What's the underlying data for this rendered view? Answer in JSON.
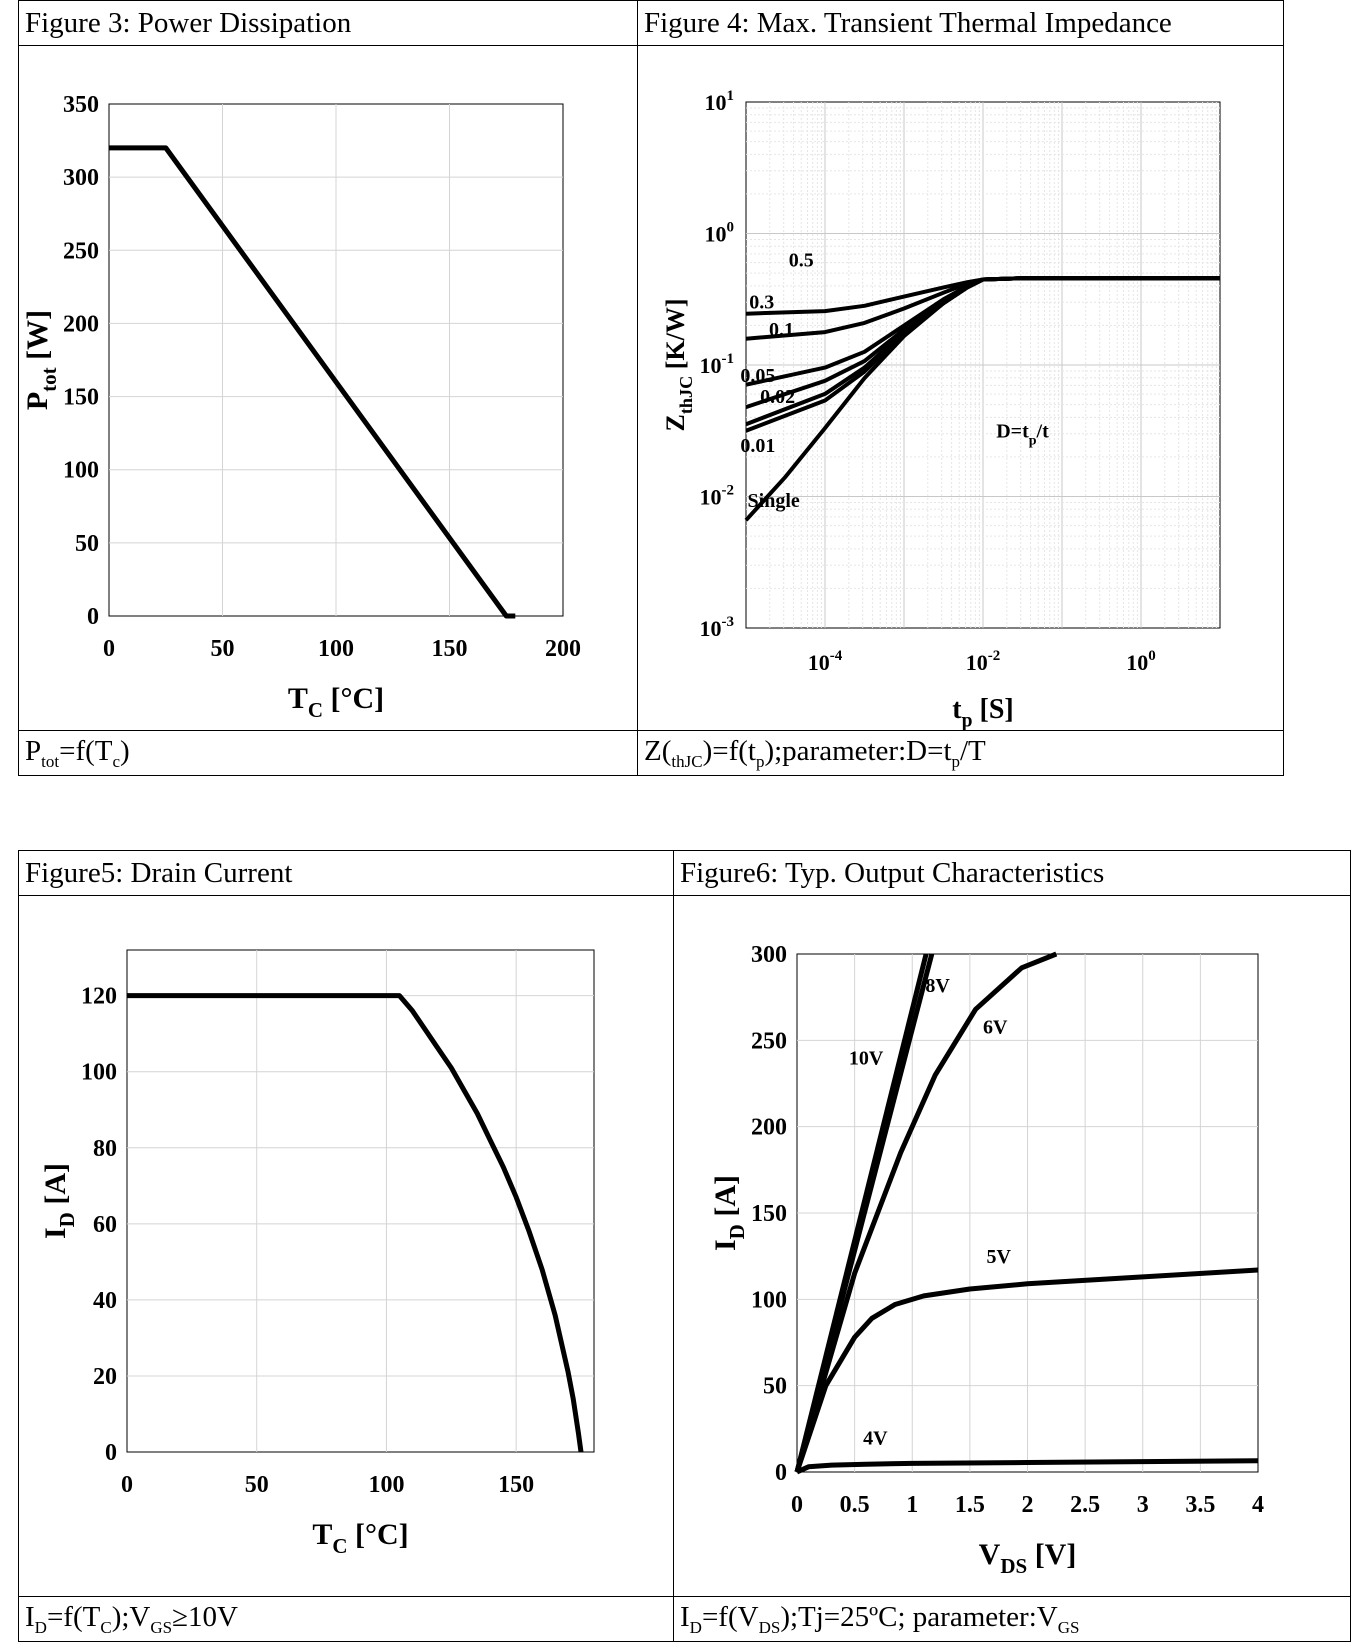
{
  "top_row": {
    "left_title": "Figure 3: Power Dissipation",
    "right_title": "Figure 4: Max. Transient Thermal Impedance",
    "left_caption": {
      "a": "P",
      "a_sub": "tot",
      "b": "=f(T",
      "b_sub": "c",
      "c": ")"
    },
    "right_caption": {
      "a": "Z(",
      "a_sub": "thJC",
      "b": ")=f(t",
      "b_sub": "p",
      "c": ");parameter:D=t",
      "c_sub": "p",
      "d": "/T"
    }
  },
  "bottom_row": {
    "left_title": "Figure5: Drain Current",
    "right_title": "Figure6: Typ. Output Characteristics",
    "left_caption": {
      "a": "I",
      "a_sub": "D",
      "b": "=f(T",
      "b_sub": "C",
      "c": ");V",
      "c_sub": "GS",
      "d": "≥10V"
    },
    "right_caption": {
      "a": "I",
      "a_sub": "D",
      "b": "=f(V",
      "b_sub": "DS",
      "c": ");Tj=25ºC; parameter:V",
      "c_sub": "GS"
    }
  },
  "chart_data": [
    {
      "id": "fig3",
      "type": "line",
      "xlabel": {
        "main": "T",
        "sub": "C",
        "unit": " [°C]"
      },
      "ylabel": {
        "main": "P",
        "sub": "tot",
        "unit": "  [W]"
      },
      "xlim": [
        0,
        200
      ],
      "ylim": [
        0,
        350
      ],
      "xticks": [
        0,
        50,
        100,
        150,
        200
      ],
      "yticks": [
        0,
        50,
        100,
        150,
        200,
        250,
        300,
        350
      ],
      "grid": true,
      "series": [
        {
          "x": [
            0,
            25,
            175,
            179
          ],
          "y": [
            320,
            320,
            0,
            0
          ]
        }
      ]
    },
    {
      "id": "fig4",
      "type": "line",
      "scale": "log-log",
      "xlabel": {
        "main": "t",
        "sub": "p",
        "unit": " [S]"
      },
      "ylabel": {
        "main": "Z",
        "sub": "thJC",
        "unit": " [K/W]"
      },
      "xlim_exp": [
        -5,
        1
      ],
      "ylim_exp": [
        -3,
        1
      ],
      "xticks": [
        {
          "exp": "-4",
          "v": -4
        },
        {
          "exp": "-2",
          "v": -2
        },
        {
          "exp": "0",
          "v": 0
        }
      ],
      "yticks": [
        {
          "exp": "-3",
          "v": -3
        },
        {
          "exp": "-2",
          "v": -2
        },
        {
          "exp": "-1",
          "v": -1
        },
        {
          "exp": "0",
          "v": 0
        },
        {
          "exp": "1",
          "v": 1
        }
      ],
      "grid": true,
      "annotation": {
        "main": "D=t",
        "sub": "p",
        "rest": "/t"
      },
      "series": [
        {
          "name": "0.5",
          "lx": [
            -5,
            -4,
            -3.5,
            -3,
            -2.5,
            -2.2,
            -2,
            -1.5,
            -1,
            0,
            1
          ],
          "ly": [
            -0.61,
            -0.59,
            -0.55,
            -0.48,
            -0.41,
            -0.37,
            -0.35,
            -0.34,
            -0.34,
            -0.34,
            -0.34
          ]
        },
        {
          "name": "0.3",
          "lx": [
            -5,
            -4,
            -3.5,
            -3,
            -2.5,
            -2.2,
            -2,
            -1.5,
            -1,
            0,
            1
          ],
          "ly": [
            -0.8,
            -0.75,
            -0.68,
            -0.57,
            -0.45,
            -0.38,
            -0.35,
            -0.34,
            -0.34,
            -0.34,
            -0.34
          ]
        },
        {
          "name": "0.1",
          "lx": [
            -5,
            -4,
            -3.5,
            -3,
            -2.5,
            -2.2,
            -2,
            -1.5,
            -1,
            0,
            1
          ],
          "ly": [
            -1.15,
            -1.02,
            -0.9,
            -0.7,
            -0.5,
            -0.4,
            -0.35,
            -0.34,
            -0.34,
            -0.34,
            -0.34
          ]
        },
        {
          "name": "0.05",
          "lx": [
            -5,
            -4,
            -3.5,
            -3,
            -2.5,
            -2.2,
            -2,
            -1.5,
            -1,
            0,
            1
          ],
          "ly": [
            -1.32,
            -1.12,
            -0.97,
            -0.73,
            -0.52,
            -0.41,
            -0.35,
            -0.34,
            -0.34,
            -0.34,
            -0.34
          ]
        },
        {
          "name": "0.02",
          "lx": [
            -5,
            -4,
            -3.5,
            -3,
            -2.5,
            -2.2,
            -2,
            -1.5,
            -1,
            0,
            1
          ],
          "ly": [
            -1.45,
            -1.22,
            -1.02,
            -0.75,
            -0.53,
            -0.41,
            -0.35,
            -0.34,
            -0.34,
            -0.34,
            -0.34
          ]
        },
        {
          "name": "0.01",
          "lx": [
            -5,
            -4,
            -3.5,
            -3,
            -2.5,
            -2.2,
            -2,
            -1.5,
            -1,
            0,
            1
          ],
          "ly": [
            -1.5,
            -1.27,
            -1.05,
            -0.76,
            -0.53,
            -0.41,
            -0.35,
            -0.34,
            -0.34,
            -0.34,
            -0.34
          ]
        },
        {
          "name": "Single",
          "lx": [
            -5,
            -4.5,
            -4,
            -3.5,
            -3,
            -2.5,
            -2.2,
            -2,
            -1.5,
            -1,
            0,
            1
          ],
          "ly": [
            -2.18,
            -1.85,
            -1.48,
            -1.1,
            -0.78,
            -0.53,
            -0.41,
            -0.35,
            -0.34,
            -0.34,
            -0.34,
            -0.34
          ]
        }
      ]
    },
    {
      "id": "fig5",
      "type": "line",
      "xlabel": {
        "main": "T",
        "sub": "C",
        "unit": " [°C]"
      },
      "ylabel": {
        "main": "I",
        "sub": "D",
        "unit": " [A]"
      },
      "xlim": [
        0,
        180
      ],
      "ylim": [
        0,
        132
      ],
      "xticks": [
        0,
        50,
        100,
        150
      ],
      "yticks": [
        0,
        20,
        40,
        60,
        80,
        100,
        120
      ],
      "grid": true,
      "series": [
        {
          "x": [
            0,
            105,
            110,
            115,
            120,
            125,
            130,
            135,
            140,
            145,
            150,
            155,
            160,
            165,
            168,
            170,
            172,
            174,
            175
          ],
          "y": [
            120,
            120,
            116,
            111,
            106,
            101,
            95,
            89,
            82,
            75,
            67,
            58,
            48,
            36,
            27,
            21,
            14,
            5,
            0
          ]
        }
      ]
    },
    {
      "id": "fig6",
      "type": "line",
      "xlabel": {
        "main": "V",
        "sub": "DS",
        "unit": " [V]"
      },
      "ylabel": {
        "main": "I",
        "sub": "D",
        "unit": " [A]"
      },
      "xlim": [
        0,
        4
      ],
      "ylim": [
        0,
        300
      ],
      "xticks": [
        0,
        0.5,
        1,
        1.5,
        2,
        2.5,
        3,
        3.5,
        4
      ],
      "yticks": [
        0,
        50,
        100,
        150,
        200,
        250,
        300
      ],
      "grid": true,
      "series": [
        {
          "name": "10V",
          "x": [
            0,
            1.12
          ],
          "y": [
            0,
            300
          ]
        },
        {
          "name": "8V",
          "x": [
            0,
            1.17
          ],
          "y": [
            0,
            300
          ]
        },
        {
          "name": "6V",
          "x": [
            0,
            0.5,
            0.9,
            1.2,
            1.55,
            1.95,
            2.25
          ],
          "y": [
            0,
            115,
            185,
            230,
            268,
            292,
            300
          ]
        },
        {
          "name": "5V",
          "x": [
            0,
            0.25,
            0.5,
            0.65,
            0.85,
            1.1,
            1.5,
            2,
            3,
            4
          ],
          "y": [
            0,
            50,
            78,
            89,
            97,
            102,
            106,
            109,
            113,
            117
          ]
        },
        {
          "name": "4V",
          "x": [
            0,
            0.1,
            0.3,
            0.6,
            1,
            2,
            3,
            4
          ],
          "y": [
            0,
            3,
            4,
            4.5,
            5,
            5.5,
            6,
            6.5
          ]
        }
      ]
    }
  ]
}
